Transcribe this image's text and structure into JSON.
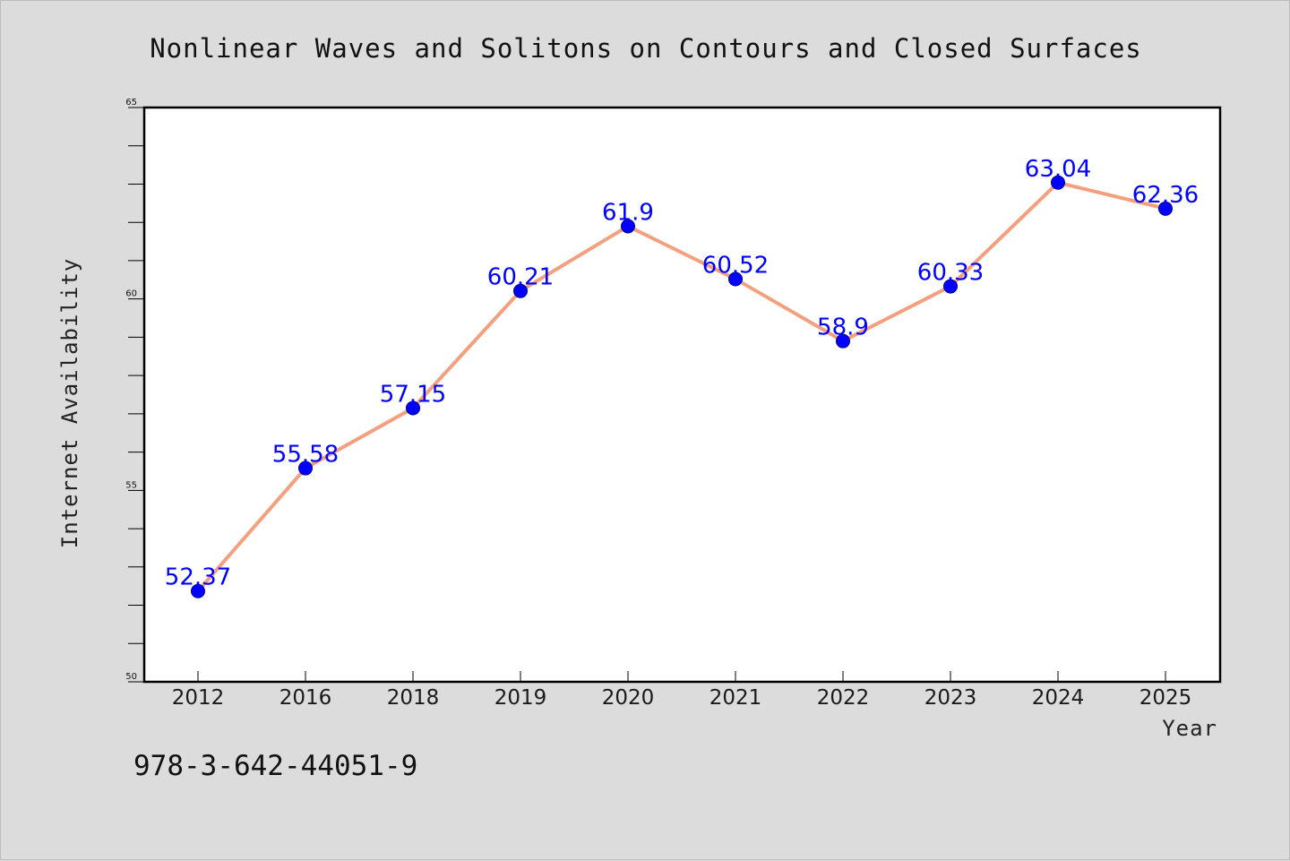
{
  "chart_data": {
    "type": "line",
    "title": "Nonlinear Waves and Solitons on Contours and Closed Surfaces",
    "xlabel": "Year",
    "ylabel": "Internet Availability",
    "categories": [
      "2012",
      "2016",
      "2018",
      "2019",
      "2020",
      "2021",
      "2022",
      "2023",
      "2024",
      "2025"
    ],
    "series": [
      {
        "values": [
          52.37,
          55.58,
          57.15,
          60.21,
          61.9,
          60.52,
          58.9,
          60.33,
          63.04,
          62.36
        ],
        "labels": [
          "52.37",
          "55.58",
          "57.15",
          "60.21",
          "61.9",
          "60.52",
          "58.9",
          "60.33",
          "63.04",
          "62.36"
        ]
      }
    ],
    "ylim": [
      50,
      65
    ],
    "yticks": [
      "50",
      "55",
      "60",
      "65"
    ],
    "grid": false,
    "legend": "none",
    "colors": {
      "line": "#f4a07f",
      "marker": "#0000ff",
      "data_label": "#0000ff",
      "background": "#dcdcdc",
      "plot_area": "#ffffff"
    }
  },
  "footnote": "978-3-642-44051-9"
}
